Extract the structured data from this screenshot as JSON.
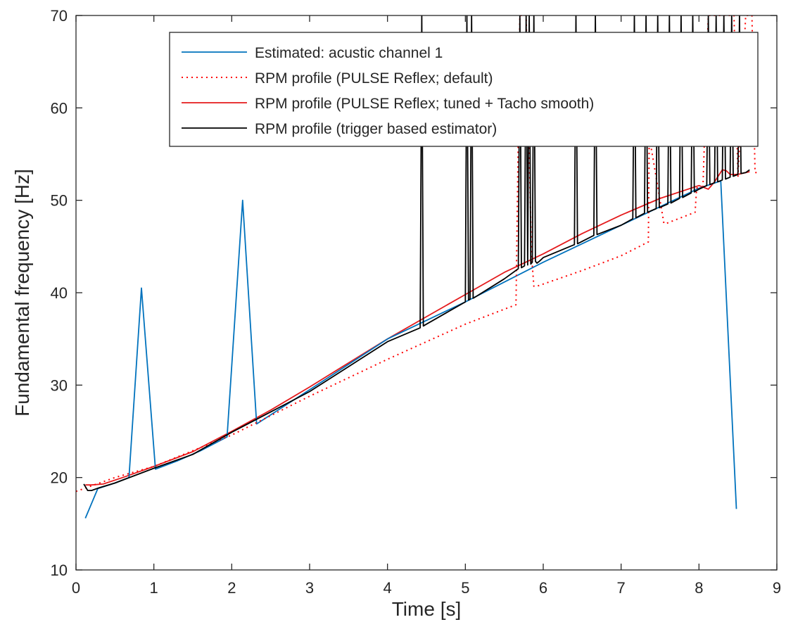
{
  "chart_data": {
    "type": "line",
    "title": "",
    "xlabel": "Time [s]",
    "ylabel": "Fundamental frequency [Hz]",
    "xlim": [
      0,
      9
    ],
    "ylim": [
      10,
      70
    ],
    "xticks": [
      0,
      1,
      2,
      3,
      4,
      5,
      6,
      7,
      8,
      9
    ],
    "yticks": [
      10,
      20,
      30,
      40,
      50,
      60,
      70
    ],
    "xtick_labels": [
      "0",
      "1",
      "2",
      "3",
      "4",
      "5",
      "6",
      "7",
      "8",
      "9"
    ],
    "ytick_labels": [
      "10",
      "20",
      "30",
      "40",
      "50",
      "60",
      "70"
    ],
    "grid": false,
    "box": true,
    "legend": {
      "position": "top-right"
    },
    "series": [
      {
        "name": "Estimated: acustic channel 1",
        "color": "#0072bd",
        "style": "solid",
        "x": [
          0.12,
          0.28,
          0.5,
          0.68,
          0.84,
          1.02,
          1.3,
          1.6,
          1.94,
          2.14,
          2.32,
          3.0,
          4.0,
          5.0,
          6.0,
          7.0,
          8.0,
          8.28,
          8.48
        ],
        "y": [
          15.6,
          18.8,
          19.4,
          20.0,
          40.5,
          20.9,
          21.8,
          22.9,
          24.4,
          50.0,
          25.8,
          29.5,
          35.0,
          39.0,
          43.3,
          47.3,
          51.3,
          52.1,
          16.6
        ]
      },
      {
        "name": "RPM profile (PULSE Reflex; default)",
        "color": "#ff0000",
        "style": "dotted",
        "x": [
          0.0,
          0.5,
          1.0,
          2.0,
          3.0,
          4.0,
          5.0,
          5.65,
          5.7,
          5.73,
          5.78,
          5.85,
          5.88,
          5.92,
          6.5,
          7.0,
          7.35,
          7.36,
          7.38,
          7.55,
          7.58,
          7.95,
          7.97,
          8.0,
          8.05,
          8.12,
          8.3,
          8.45,
          8.5,
          8.6,
          8.68,
          8.72,
          8.75
        ],
        "y": [
          18.5,
          20.0,
          21.2,
          24.6,
          28.8,
          32.8,
          36.6,
          38.7,
          70.0,
          70.0,
          70.0,
          44.0,
          40.7,
          40.7,
          42.4,
          44.0,
          45.5,
          56.0,
          56.0,
          47.5,
          47.5,
          48.7,
          51.3,
          51.5,
          51.2,
          70.0,
          70.0,
          70.0,
          52.5,
          70.0,
          70.0,
          53.0,
          53.0
        ]
      },
      {
        "name": "RPM profile (PULSE Reflex; tuned + Tacho smooth)",
        "color": "#e41a1c",
        "style": "solid",
        "x": [
          0.12,
          0.2,
          0.35,
          0.6,
          1.0,
          1.5,
          2.0,
          2.5,
          3.0,
          3.5,
          4.0,
          4.5,
          5.0,
          5.5,
          6.0,
          6.5,
          7.0,
          7.5,
          8.0,
          8.12,
          8.2,
          8.3,
          8.35,
          8.4,
          8.5,
          8.65
        ],
        "y": [
          19.2,
          19.2,
          19.3,
          20.0,
          21.2,
          22.8,
          25.0,
          27.3,
          29.8,
          32.4,
          35.0,
          37.4,
          39.8,
          42.2,
          44.2,
          46.4,
          48.4,
          50.2,
          51.6,
          51.2,
          52.0,
          53.3,
          53.2,
          52.8,
          52.8,
          53.1
        ]
      },
      {
        "name": "RPM profile (trigger based estimator)",
        "color": "#000000",
        "style": "solid",
        "x": [
          0.1,
          0.15,
          0.2,
          0.3,
          0.5,
          1.0,
          1.5,
          2.0,
          2.5,
          3.0,
          3.5,
          4.0,
          4.42,
          4.44,
          4.46,
          4.5,
          5.0,
          5.02,
          5.04,
          5.06,
          5.08,
          5.1,
          5.12,
          5.5,
          5.68,
          5.7,
          5.72,
          5.76,
          5.78,
          5.8,
          5.82,
          5.84,
          5.86,
          5.88,
          5.9,
          5.92,
          5.95,
          6.0,
          6.4,
          6.42,
          6.44,
          6.65,
          6.67,
          6.69,
          7.0,
          7.15,
          7.17,
          7.19,
          7.3,
          7.32,
          7.34,
          7.45,
          7.47,
          7.49,
          7.6,
          7.62,
          7.64,
          7.75,
          7.77,
          7.79,
          7.9,
          7.92,
          7.94,
          8.0,
          8.1,
          8.12,
          8.14,
          8.2,
          8.22,
          8.24,
          8.3,
          8.32,
          8.34,
          8.4,
          8.42,
          8.44,
          8.5,
          8.52,
          8.54,
          8.6,
          8.65
        ],
        "y": [
          19.3,
          18.6,
          18.6,
          18.9,
          19.4,
          21.0,
          22.5,
          24.9,
          27.1,
          29.3,
          32.0,
          34.7,
          36.2,
          70.0,
          36.4,
          36.6,
          39.0,
          70.0,
          39.2,
          39.3,
          70.0,
          39.4,
          39.5,
          41.5,
          42.6,
          70.0,
          42.7,
          42.9,
          70.0,
          43.0,
          70.0,
          43.1,
          43.3,
          70.0,
          43.4,
          43.2,
          43.4,
          43.8,
          45.2,
          70.0,
          45.3,
          46.2,
          70.0,
          46.3,
          47.3,
          48.0,
          70.0,
          48.1,
          48.6,
          70.0,
          48.7,
          49.1,
          70.0,
          49.2,
          49.6,
          70.0,
          49.7,
          50.2,
          70.0,
          50.3,
          50.8,
          70.0,
          50.9,
          51.2,
          51.6,
          70.0,
          51.7,
          51.9,
          70.0,
          52.0,
          52.2,
          70.0,
          52.3,
          52.5,
          70.0,
          52.6,
          52.8,
          70.0,
          52.9,
          53.0,
          53.3
        ]
      }
    ]
  }
}
